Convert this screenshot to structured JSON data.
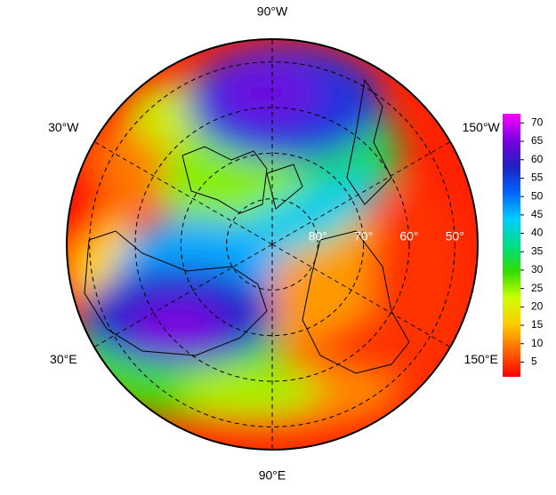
{
  "map": {
    "projection": "north-polar-stereographic",
    "lat_lim": [
      45,
      90
    ],
    "longitude_labels": [
      {
        "value": -90,
        "label": "90°W"
      },
      {
        "value": -30,
        "label": "30°W"
      },
      {
        "value": -150,
        "label": "150°W"
      },
      {
        "value": 30,
        "label": "30°E"
      },
      {
        "value": 150,
        "label": "150°E"
      },
      {
        "value": 90,
        "label": "90°E"
      }
    ],
    "latitude_labels": [
      {
        "value": 80,
        "label": "80°"
      },
      {
        "value": 70,
        "label": "70°"
      },
      {
        "value": 60,
        "label": "60°"
      },
      {
        "value": 50,
        "label": "50°"
      }
    ]
  },
  "colorbar": {
    "lim": [
      1,
      72.5
    ],
    "ticks": [
      5,
      10,
      15,
      20,
      25,
      30,
      35,
      40,
      45,
      50,
      55,
      60,
      65,
      70
    ],
    "colors": [
      "#ff0000",
      "#ff6600",
      "#ffcc00",
      "#ccff00",
      "#33dd00",
      "#00dd88",
      "#00ccff",
      "#0066ff",
      "#2020c0",
      "#7a00e0",
      "#ff00ff"
    ]
  }
}
